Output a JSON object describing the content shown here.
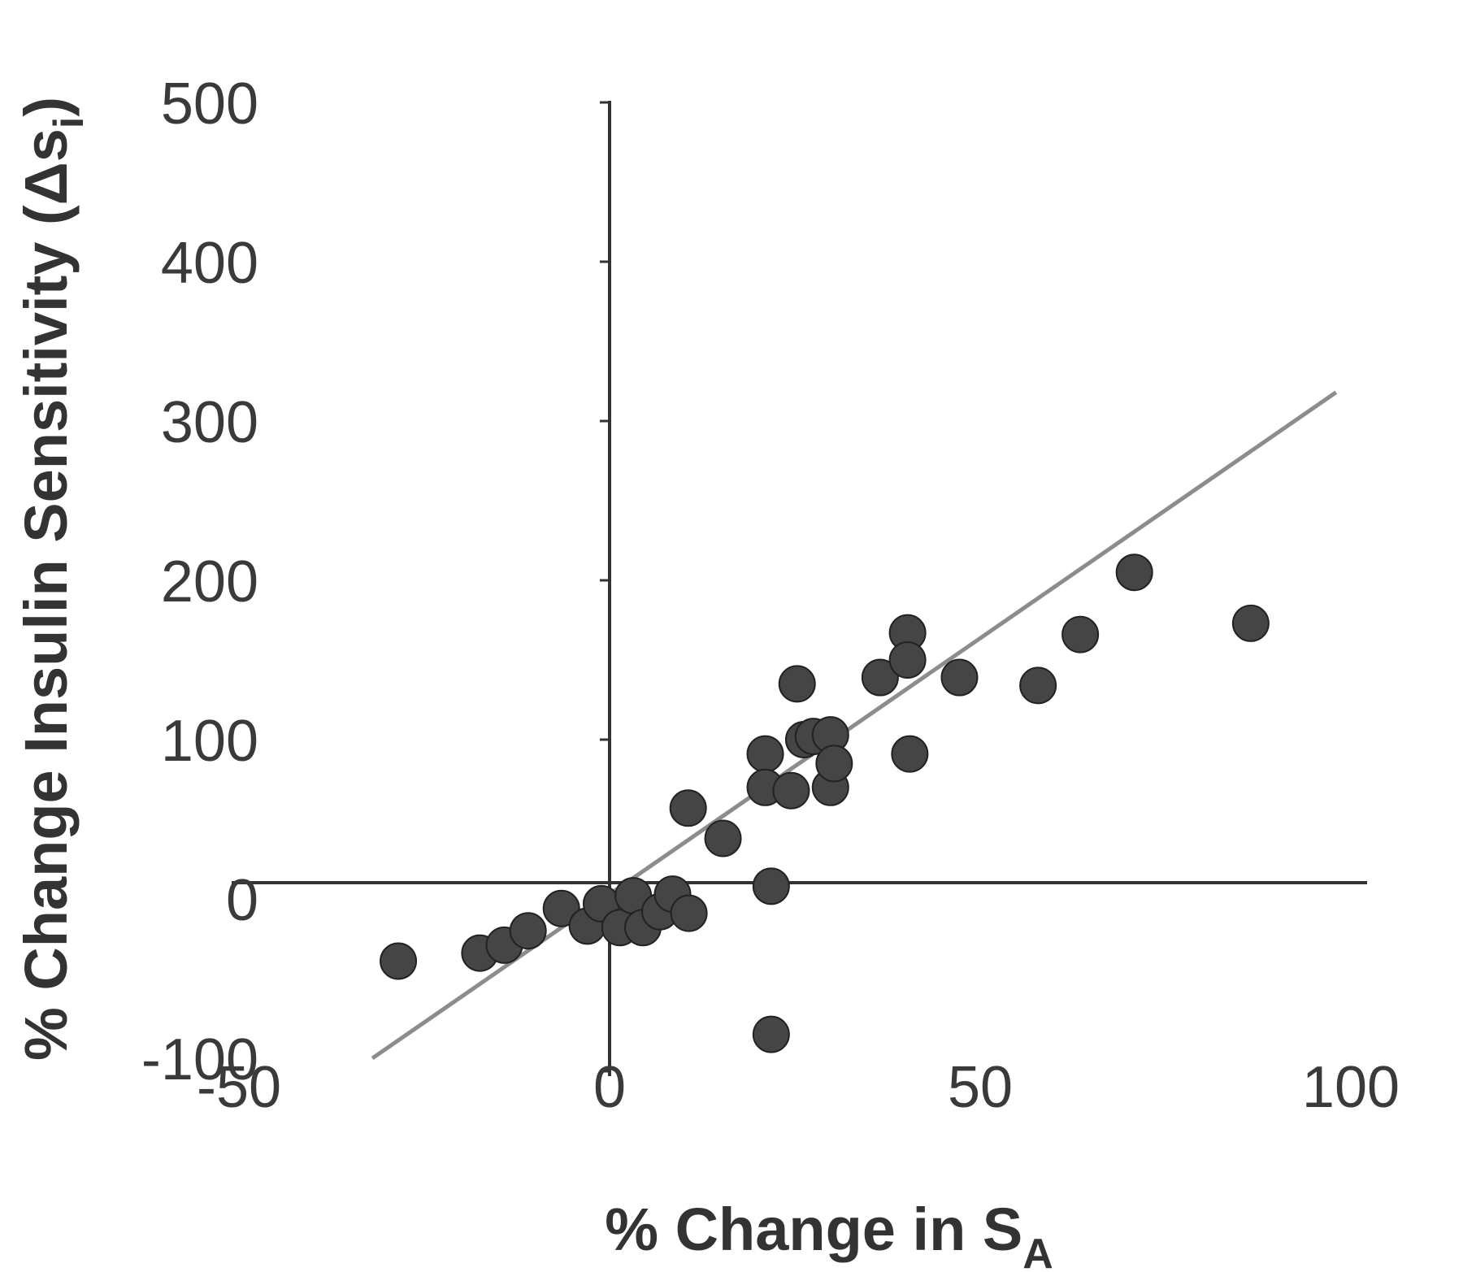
{
  "chart_data": {
    "type": "scatter",
    "xlabel_main": "% Change in S",
    "xlabel_sub": "A",
    "ylabel_main": "% Change Insulin Sensitivity (Δs",
    "ylabel_sub": "i",
    "ylabel_close": ")",
    "xlim": [
      -50,
      100
    ],
    "ylim": [
      -100,
      500
    ],
    "x_ticks": [
      -50,
      0,
      50,
      100
    ],
    "y_ticks": [
      -100,
      0,
      100,
      200,
      300,
      400,
      500
    ],
    "x_tick_labels": [
      "-50",
      "0",
      "50",
      "100"
    ],
    "y_tick_labels": [
      "-100",
      "0",
      "100",
      "200",
      "300",
      "400",
      "500"
    ],
    "fit_line": {
      "x": [
        -32,
        98
      ],
      "y": [
        -100,
        318
      ]
    },
    "points": [
      {
        "x": -28.5,
        "y": -39
      },
      {
        "x": -17.5,
        "y": -34
      },
      {
        "x": -14.2,
        "y": -29
      },
      {
        "x": -11,
        "y": -20
      },
      {
        "x": -6.5,
        "y": -6
      },
      {
        "x": -3,
        "y": -17
      },
      {
        "x": -1.1,
        "y": -3
      },
      {
        "x": 1.4,
        "y": -18
      },
      {
        "x": 3.2,
        "y": 2
      },
      {
        "x": 4.5,
        "y": -18
      },
      {
        "x": 6.8,
        "y": -8
      },
      {
        "x": 8.5,
        "y": 3
      },
      {
        "x": 10.7,
        "y": -9
      },
      {
        "x": 10.6,
        "y": 57
      },
      {
        "x": 15.3,
        "y": 38
      },
      {
        "x": 21,
        "y": 91
      },
      {
        "x": 21,
        "y": 70
      },
      {
        "x": 21.8,
        "y": 8
      },
      {
        "x": 21.8,
        "y": -85
      },
      {
        "x": 24.5,
        "y": 68
      },
      {
        "x": 25.3,
        "y": 135
      },
      {
        "x": 26.2,
        "y": 100
      },
      {
        "x": 27.5,
        "y": 102
      },
      {
        "x": 29.8,
        "y": 103
      },
      {
        "x": 29.8,
        "y": 70
      },
      {
        "x": 30.3,
        "y": 85
      },
      {
        "x": 36.5,
        "y": 139
      },
      {
        "x": 40.2,
        "y": 167
      },
      {
        "x": 40.2,
        "y": 150
      },
      {
        "x": 40.5,
        "y": 91
      },
      {
        "x": 47.2,
        "y": 139
      },
      {
        "x": 57.8,
        "y": 134
      },
      {
        "x": 63.5,
        "y": 166
      },
      {
        "x": 70.8,
        "y": 205
      },
      {
        "x": 86.5,
        "y": 173
      }
    ]
  }
}
